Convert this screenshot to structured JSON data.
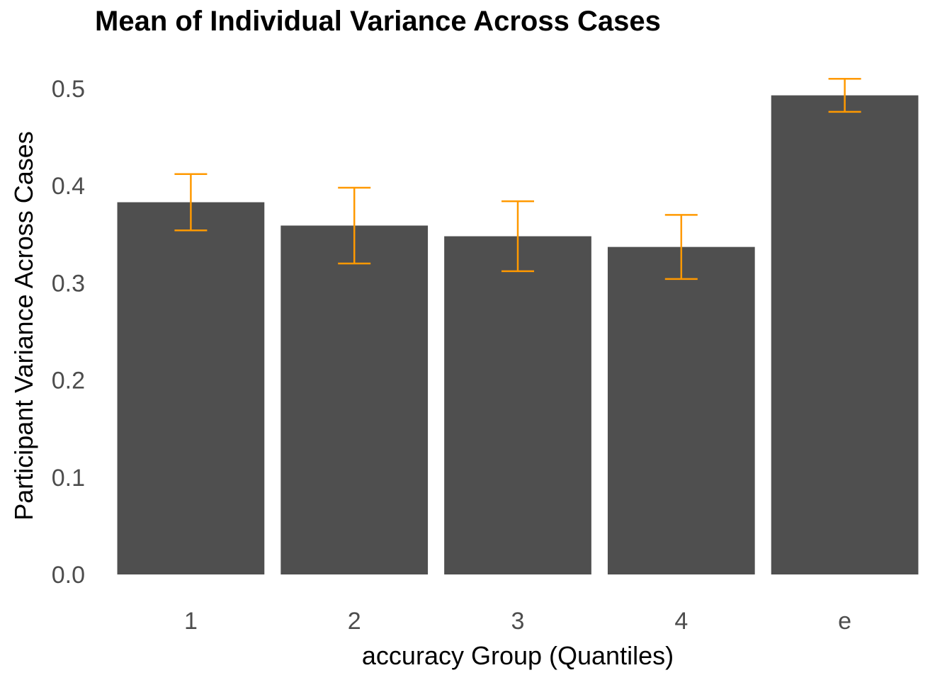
{
  "chart_data": {
    "type": "bar",
    "title": "Mean of Individual Variance Across Cases",
    "xlabel": "accuracy Group (Quantiles)",
    "ylabel": "Participant Variance Across Cases",
    "categories": [
      "1",
      "2",
      "3",
      "4",
      "e"
    ],
    "values": [
      0.383,
      0.359,
      0.348,
      0.337,
      0.493
    ],
    "error_low": [
      0.354,
      0.32,
      0.312,
      0.304,
      0.476
    ],
    "error_high": [
      0.412,
      0.398,
      0.384,
      0.37,
      0.51
    ],
    "ylim": [
      0,
      0.52
    ],
    "yticks": [
      "0.0",
      "0.1",
      "0.2",
      "0.3",
      "0.4",
      "0.5"
    ],
    "bar_color": "#4f4f4f",
    "error_color": "#ff9900",
    "grid": false
  }
}
